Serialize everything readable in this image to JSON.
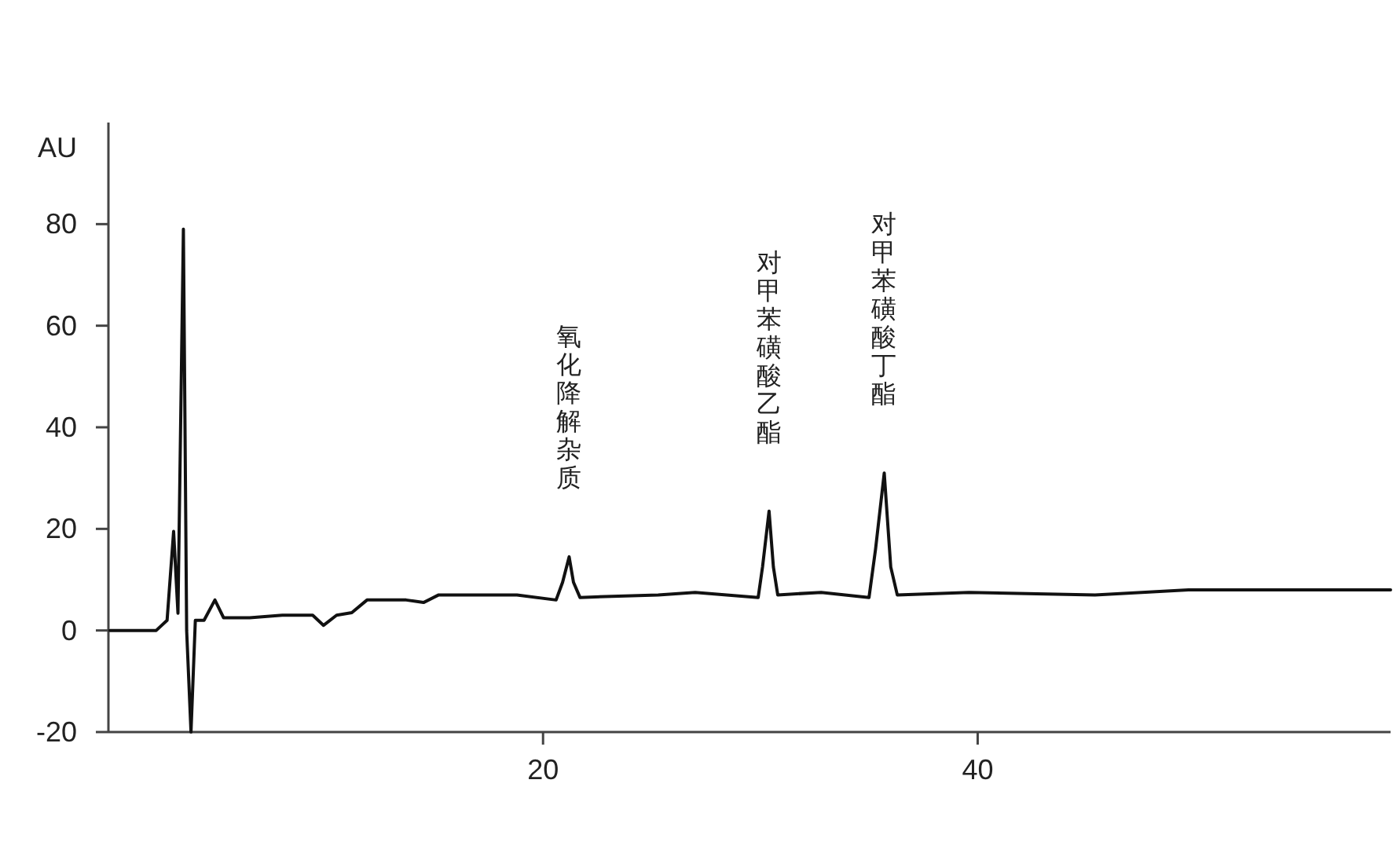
{
  "chart_data": {
    "type": "line",
    "ylabel": "AU",
    "xlim": [
      0,
      59
    ],
    "ylim": [
      -20,
      100
    ],
    "xticks": [
      20,
      40
    ],
    "yticks": [
      -20,
      0,
      20,
      40,
      60,
      80
    ],
    "series": [
      {
        "color": "#111111",
        "x": [
          0.07,
          2.2,
          2.7,
          3.0,
          3.2,
          3.45,
          3.6,
          3.8,
          4.0,
          4.4,
          4.9,
          5.3,
          6.5,
          8.0,
          9.4,
          9.9,
          10.5,
          11.2,
          11.9,
          13.7,
          14.5,
          15.2,
          18.8,
          20.6,
          20.9,
          21.2,
          21.4,
          21.7,
          25.3,
          27.0,
          29.9,
          30.1,
          30.4,
          30.6,
          30.8,
          32.8,
          35.0,
          35.3,
          35.7,
          36.0,
          36.3,
          39.6,
          45.4,
          49.7,
          59
        ],
        "values": [
          0,
          0,
          2,
          19.5,
          3.4,
          79,
          0,
          -20,
          2,
          2,
          6,
          2.5,
          2.5,
          3,
          3,
          1,
          3,
          3.5,
          6,
          6,
          5.5,
          7,
          7,
          6,
          9.5,
          14.5,
          9.5,
          6.5,
          7,
          7.5,
          6.5,
          12.5,
          23.5,
          12.5,
          7,
          7.5,
          6.5,
          16,
          31,
          12.5,
          7,
          7.5,
          7,
          8,
          8
        ]
      }
    ],
    "annotations": [
      {
        "text": "氧化降解杂质",
        "x": 21.2,
        "y": 14.5
      },
      {
        "text": "对甲苯磺酸乙酯",
        "x": 30.4,
        "y": 23.5
      },
      {
        "text": "对甲苯磺酸丁酯",
        "x": 35.7,
        "y": 31
      }
    ]
  }
}
